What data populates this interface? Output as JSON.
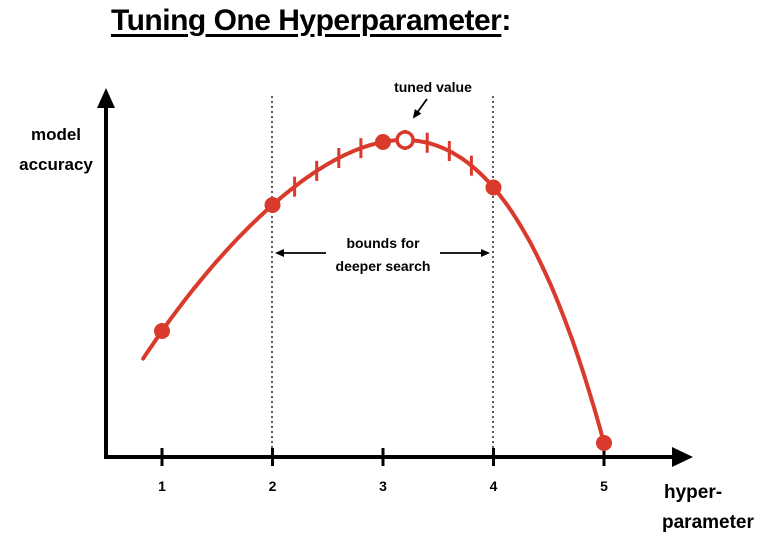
{
  "title": {
    "text": "Tuning One Hyperparameter",
    "suffix": ":"
  },
  "y_axis_label": [
    "model",
    "accuracy"
  ],
  "x_axis_label": [
    "hyper-",
    "parameter"
  ],
  "x_ticks": [
    "1",
    "2",
    "3",
    "4",
    "5"
  ],
  "annotations": {
    "tuned_value": "tuned value",
    "bounds_line1": "bounds for",
    "bounds_line2": "deeper search"
  },
  "colors": {
    "curve": "#d93a2b",
    "axis": "#000000",
    "background": "#ffffff"
  },
  "chart_data": {
    "type": "line",
    "xlim": [
      0.5,
      5.8
    ],
    "coarse_points": [
      {
        "x": 1,
        "y": 0.36
      },
      {
        "x": 2,
        "y": 0.72
      },
      {
        "x": 3,
        "y": 0.9
      },
      {
        "x": 4,
        "y": 0.77
      },
      {
        "x": 5,
        "y": 0.04
      }
    ],
    "fine_search_x": [
      2.2,
      2.4,
      2.6,
      2.8,
      3.2,
      3.4,
      3.6,
      3.8
    ],
    "tuned_point": {
      "x": 3.2,
      "y": 0.9
    },
    "search_bounds": [
      2,
      4
    ]
  }
}
